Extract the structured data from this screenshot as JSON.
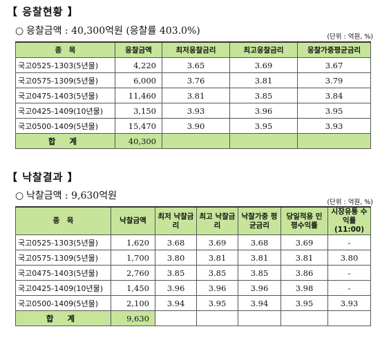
{
  "section1": {
    "title": "【 응찰현황 】",
    "bullet": "○",
    "summary": "응찰금액 : 40,300억원 (응찰률 403.0%)",
    "unit": "(단위 : 억원, %)",
    "headers": [
      "종　목",
      "응찰금액",
      "최저응찰금리",
      "최고응찰금리",
      "응찰가중평균금리"
    ],
    "rows": [
      {
        "name": "국고0525-1303(5년물)",
        "amount": "4,220",
        "min": "3.65",
        "max": "3.69",
        "avg": "3.67"
      },
      {
        "name": "국고0575-1309(5년물)",
        "amount": "6,000",
        "min": "3.76",
        "max": "3.81",
        "avg": "3.79"
      },
      {
        "name": "국고0475-1403(5년물)",
        "amount": "11,460",
        "min": "3.81",
        "max": "3.85",
        "avg": "3.84"
      },
      {
        "name": "국고0425-1409(10년물)",
        "amount": "3,150",
        "min": "3.93",
        "max": "3.96",
        "avg": "3.95"
      },
      {
        "name": "국고0500-1409(5년물)",
        "amount": "15,470",
        "min": "3.90",
        "max": "3.95",
        "avg": "3.93"
      }
    ],
    "total_label": "합 계",
    "total_amount": "40,300"
  },
  "section2": {
    "title": "【 낙찰결과 】",
    "bullet": "○",
    "summary": "낙찰금액 : 9,630억원",
    "unit": "(단위 : 억원, %)",
    "headers": [
      "종　목",
      "낙찰금액",
      "최저 낙찰금리",
      "최고 낙찰금리",
      "낙찰가중 평균금리",
      "당일적용 민평수익률",
      "시장유통 수익률 (11:00)"
    ],
    "rows": [
      {
        "name": "국고0525-1303(5년물)",
        "amount": "1,620",
        "min": "3.68",
        "max": "3.69",
        "avg": "3.68",
        "minpyeong": "3.69",
        "market": "-"
      },
      {
        "name": "국고0575-1309(5년물)",
        "amount": "1,700",
        "min": "3.80",
        "max": "3.81",
        "avg": "3.81",
        "minpyeong": "3.81",
        "market": "3.80"
      },
      {
        "name": "국고0475-1403(5년물)",
        "amount": "2,760",
        "min": "3.85",
        "max": "3.85",
        "avg": "3.85",
        "minpyeong": "3.86",
        "market": "-"
      },
      {
        "name": "국고0425-1409(10년물)",
        "amount": "1,450",
        "min": "3.96",
        "max": "3.96",
        "avg": "3.96",
        "minpyeong": "3.98",
        "market": "-"
      },
      {
        "name": "국고0500-1409(5년물)",
        "amount": "2,100",
        "min": "3.94",
        "max": "3.95",
        "avg": "3.94",
        "minpyeong": "3.95",
        "market": "3.93"
      }
    ],
    "total_label": "합 계",
    "total_amount": "9,630"
  }
}
